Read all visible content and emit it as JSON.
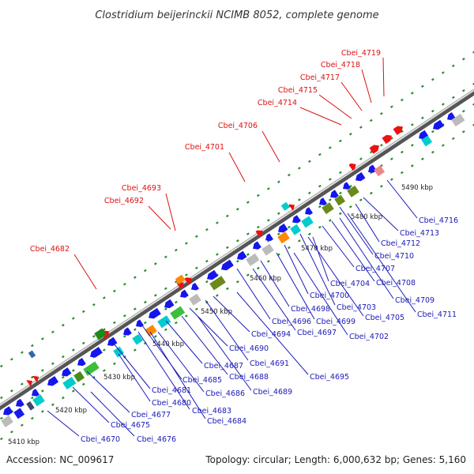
{
  "title": "Clostridium beijerinckii NCIMB 8052, complete genome",
  "footer": {
    "accession": "Accession: NC_009617",
    "summary": "Topology: circular; Length: 6,000,632 bp; Genes: 5,160"
  },
  "colors": {
    "forward_label": "#dd1111",
    "reverse_label": "#1a1ab8",
    "backbone_dark": "#555555",
    "backbone_light": "#dddddd",
    "forward_gene": "#ee1111",
    "reverse_gene": "#1515ee",
    "track_green": "#1a8a1a"
  },
  "scale_ticks": [
    "5410 kbp",
    "5420 kbp",
    "5430 kbp",
    "5440 kbp",
    "5450 kbp",
    "5460 kbp",
    "5470 kbp",
    "5480 kbp",
    "5490 kbp"
  ],
  "forward_labels": [
    "Cbei_4682",
    "Cbei_4692",
    "Cbei_4693",
    "Cbei_4701",
    "Cbei_4706",
    "Cbei_4714",
    "Cbei_4715",
    "Cbei_4717",
    "Cbei_4718",
    "Cbei_4719"
  ],
  "reverse_labels": [
    "Cbei_4670",
    "Cbei_4676",
    "Cbei_4675",
    "Cbei_4677",
    "Cbei_4680",
    "Cbei_4681",
    "Cbei_4684",
    "Cbei_4683",
    "Cbei_4686",
    "Cbei_4685",
    "Cbei_4687",
    "Cbei_4689",
    "Cbei_4688",
    "Cbei_4691",
    "Cbei_4690",
    "Cbei_4695",
    "Cbei_4694",
    "Cbei_4697",
    "Cbei_4696",
    "Cbei_4698",
    "Cbei_4699",
    "Cbei_4702",
    "Cbei_4700",
    "Cbei_4705",
    "Cbei_4703",
    "Cbei_4704",
    "Cbei_4711",
    "Cbei_4709",
    "Cbei_4708",
    "Cbei_4707",
    "Cbei_4710",
    "Cbei_4712",
    "Cbei_4713",
    "Cbei_4716"
  ]
}
